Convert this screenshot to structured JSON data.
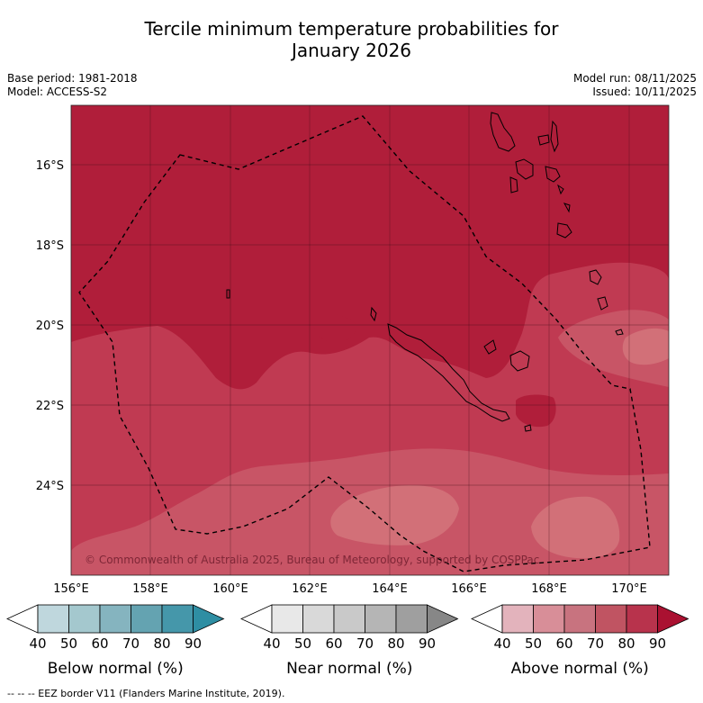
{
  "title_line1": "Tercile minimum temperature probabilities for",
  "title_line2": "January 2026",
  "meta": {
    "base_period": "Base period: 1981-2018",
    "model": "Model: ACCESS-S2",
    "model_run": "Model run: 08/11/2025",
    "issued": "Issued: 10/11/2025"
  },
  "map": {
    "lat_labels": [
      "16°S",
      "18°S",
      "20°S",
      "22°S",
      "24°S"
    ],
    "lon_labels": [
      "156°E",
      "158°E",
      "160°E",
      "162°E",
      "164°E",
      "166°E",
      "168°E",
      "170°E"
    ],
    "copyright": "© Commonwealth of Australia 2025, Bureau of Meteorology, supported by COSPPac",
    "colors": {
      "above_90": "#b01e3a",
      "above_80": "#c03a52",
      "above_70": "#c85566",
      "above_60": "#d27078"
    }
  },
  "colorbars": [
    {
      "label": "Below normal (%)",
      "ticks": [
        "40",
        "50",
        "60",
        "70",
        "80",
        "90"
      ],
      "colors": [
        "#ffffff",
        "#bfd7dd",
        "#a4c8ce",
        "#85b4bf",
        "#64a3b1",
        "#4597aa",
        "#2e8ea3"
      ]
    },
    {
      "label": "Near normal (%)",
      "ticks": [
        "40",
        "50",
        "60",
        "70",
        "80",
        "90"
      ],
      "colors": [
        "#ffffff",
        "#e8e8e8",
        "#d9d9d9",
        "#c9c9c9",
        "#b5b5b5",
        "#9f9f9f",
        "#878787"
      ]
    },
    {
      "label": "Above normal (%)",
      "ticks": [
        "40",
        "50",
        "60",
        "70",
        "80",
        "90"
      ],
      "colors": [
        "#ffffff",
        "#e3b3bc",
        "#d88e98",
        "#c8737f",
        "#c05462",
        "#b8334c",
        "#aa1131"
      ]
    }
  ],
  "footnote": "--  --  -- EEZ border V11 (Flanders Marine Institute, 2019)."
}
